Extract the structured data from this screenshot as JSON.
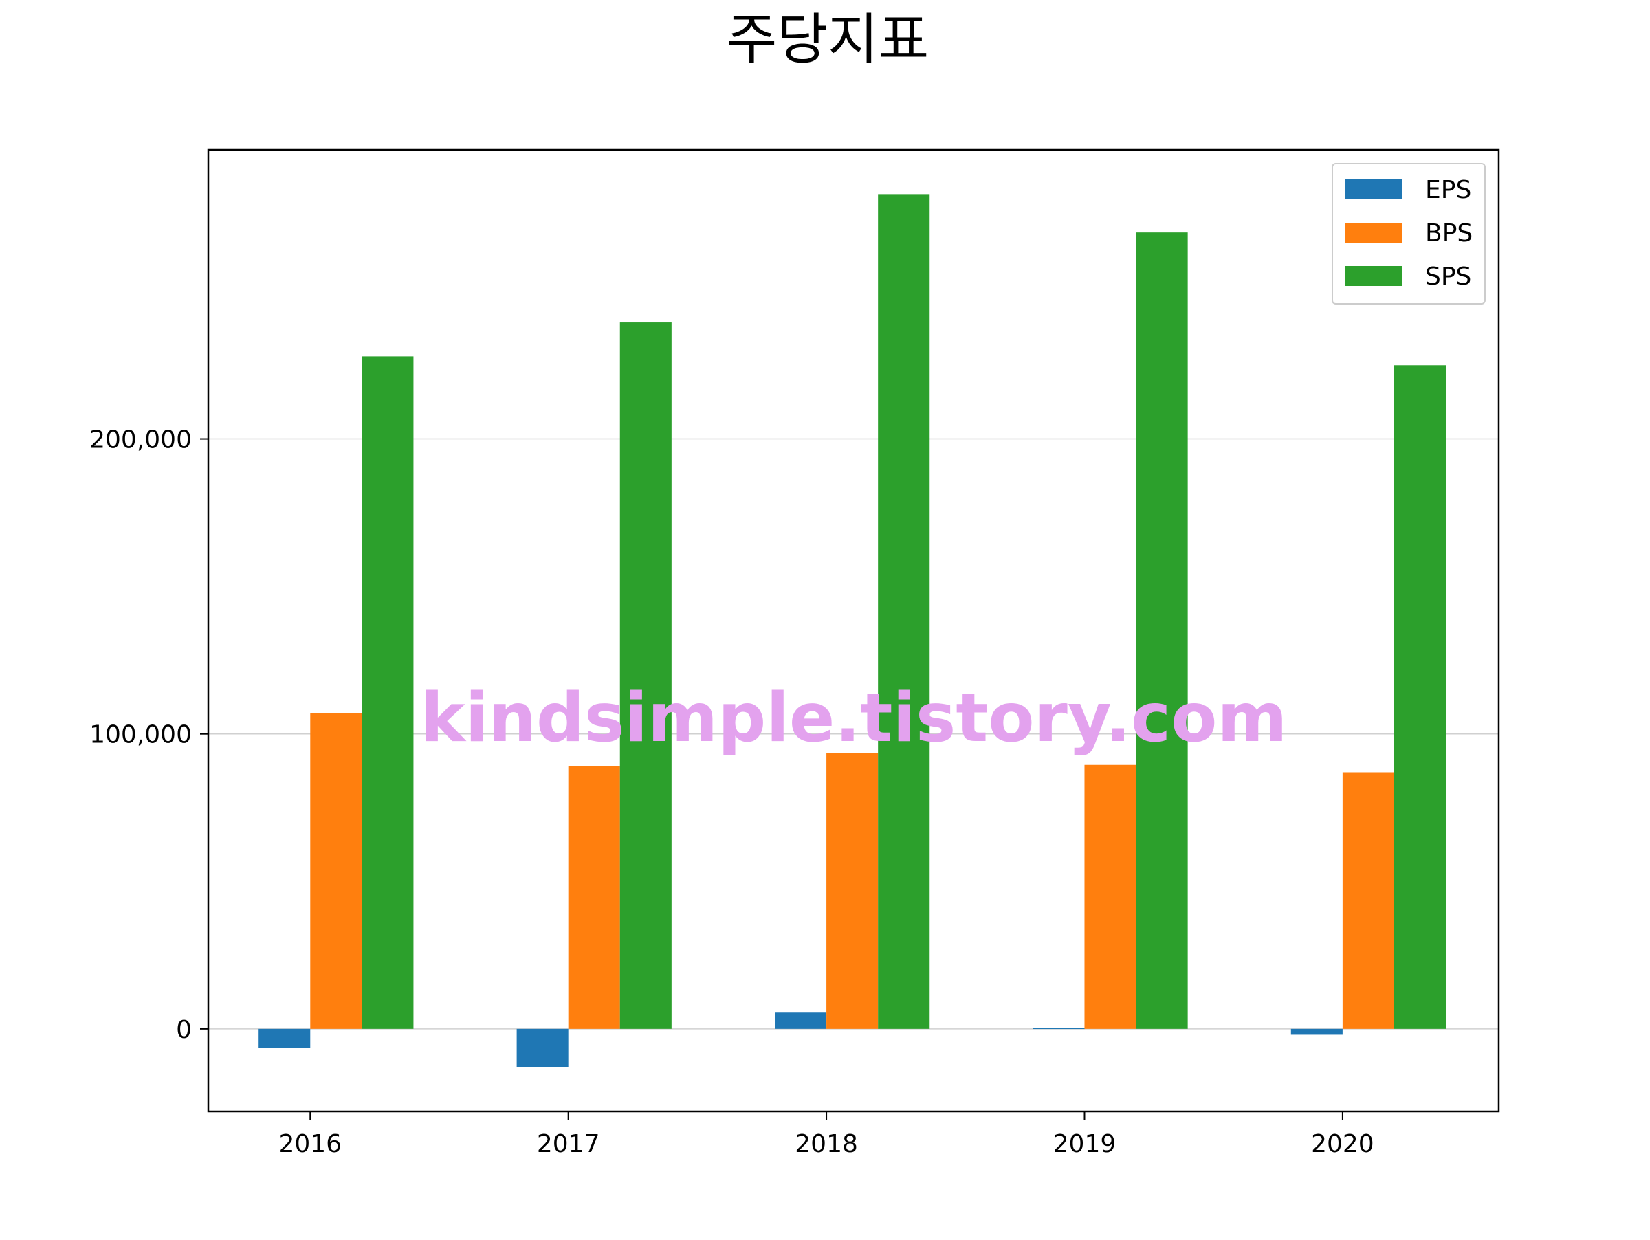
{
  "chart_data": {
    "type": "bar",
    "title": "주당지표",
    "xlabel": "",
    "ylabel": "",
    "categories": [
      "2016",
      "2017",
      "2018",
      "2019",
      "2020"
    ],
    "series": [
      {
        "name": "EPS",
        "color": "#1f77b4",
        "values": [
          -6500,
          -13000,
          5500,
          300,
          -2000
        ]
      },
      {
        "name": "BPS",
        "color": "#ff7f0e",
        "values": [
          107000,
          89000,
          93500,
          89500,
          87000
        ]
      },
      {
        "name": "SPS",
        "color": "#2ca02c",
        "values": [
          228000,
          239500,
          283000,
          270000,
          225000
        ]
      }
    ],
    "ylim": [
      -28000,
      298000
    ],
    "yticks": [
      0,
      100000,
      200000
    ],
    "ytick_labels": [
      "0",
      "100,000",
      "200,000"
    ],
    "grid": {
      "y": true,
      "x": false
    },
    "legend_position": "top-right"
  },
  "watermark": {
    "text": "kindsimple.tistory.com",
    "color": "#e3a2ee"
  }
}
